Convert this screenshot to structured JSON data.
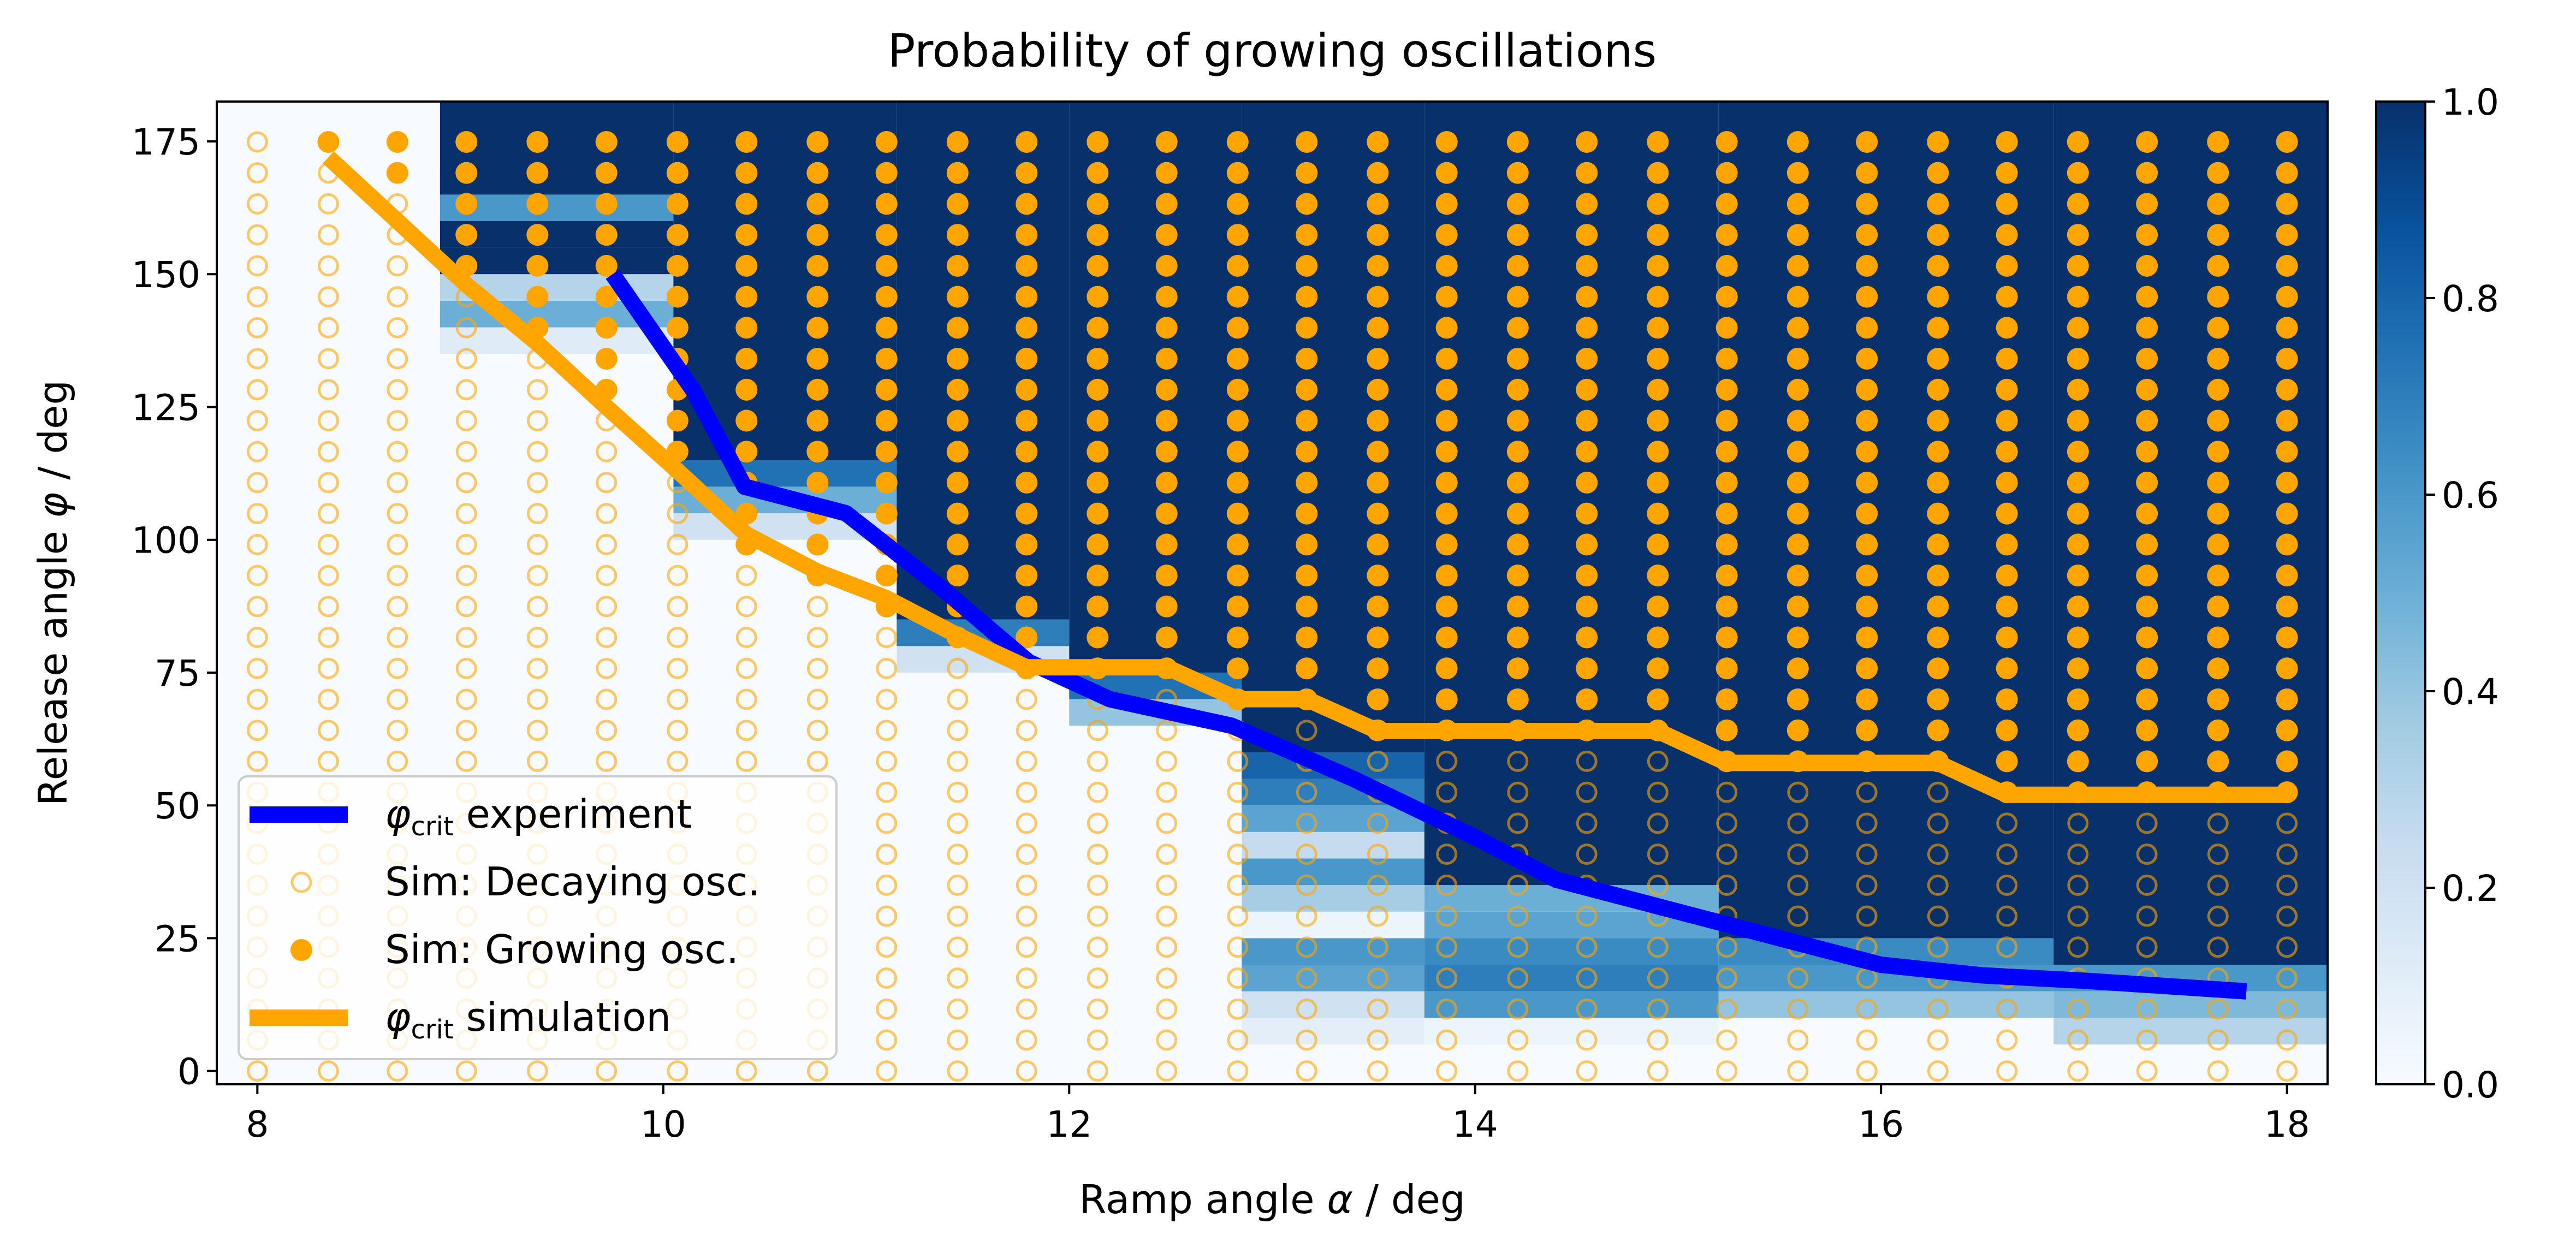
{
  "chart_data": {
    "type": "heatmap",
    "title": "Probability of growing oscillations",
    "xlabel_parts": [
      {
        "text": "Ramp angle ",
        "italic": false
      },
      {
        "text": "α",
        "italic": true
      },
      {
        "text": " / deg",
        "italic": false
      }
    ],
    "ylabel_parts": [
      {
        "text": "Release angle ",
        "italic": false
      },
      {
        "text": "φ",
        "italic": true
      },
      {
        "text": " / deg",
        "italic": false
      }
    ],
    "xlim": [
      7.8,
      18.2
    ],
    "ylim": [
      -2.5,
      182.5
    ],
    "xticks": [
      8,
      10,
      12,
      14,
      16,
      18
    ],
    "yticks": [
      0,
      25,
      50,
      75,
      100,
      125,
      150,
      175
    ],
    "colorbar": {
      "colormap": "Blues",
      "range": [
        0,
        1
      ],
      "ticks": [
        "0.0",
        "0.2",
        "0.4",
        "0.6",
        "0.8",
        "1.0"
      ]
    },
    "heatmap": {
      "cell_height_deg": 5,
      "columns": [
        {
          "x_range": [
            7.8,
            8.9
          ],
          "profile": [],
          "full_above": 182.5
        },
        {
          "x_range": [
            8.9,
            10.05
          ],
          "profile": [
            [
              135,
              0.12
            ],
            [
              140,
              0.5
            ],
            [
              145,
              0.3
            ],
            [
              150,
              1.0
            ],
            [
              155,
              1.0
            ],
            [
              160,
              0.6
            ],
            [
              165,
              1.0
            ]
          ],
          "full_above": 165
        },
        {
          "x_range": [
            10.05,
            11.15
          ],
          "profile": [
            [
              100,
              0.2
            ],
            [
              105,
              0.5
            ],
            [
              110,
              0.75
            ]
          ],
          "full_above": 115
        },
        {
          "x_range": [
            11.15,
            12.0
          ],
          "profile": [
            [
              75,
              0.2
            ],
            [
              80,
              0.7
            ]
          ],
          "full_above": 85
        },
        {
          "x_range": [
            12.0,
            12.85
          ],
          "profile": [
            [
              65,
              0.4
            ],
            [
              70,
              0.75
            ]
          ],
          "full_above": 75
        },
        {
          "x_range": [
            12.85,
            13.75
          ],
          "profile": [
            [
              5,
              0.1
            ],
            [
              10,
              0.2
            ],
            [
              15,
              0.55
            ],
            [
              20,
              0.6
            ],
            [
              25,
              0.05
            ],
            [
              30,
              0.35
            ],
            [
              35,
              0.6
            ],
            [
              40,
              0.25
            ],
            [
              45,
              0.55
            ],
            [
              50,
              0.7
            ],
            [
              55,
              0.8
            ]
          ],
          "full_above": 60
        },
        {
          "x_range": [
            13.75,
            15.2
          ],
          "profile": [
            [
              5,
              0.05
            ],
            [
              10,
              0.6
            ],
            [
              15,
              0.7
            ],
            [
              20,
              0.65
            ],
            [
              25,
              0.55
            ],
            [
              30,
              0.5
            ]
          ],
          "full_above": 35
        },
        {
          "x_range": [
            15.2,
            16.85
          ],
          "profile": [
            [
              10,
              0.4
            ],
            [
              15,
              0.6
            ],
            [
              20,
              0.65
            ]
          ],
          "full_above": 25
        },
        {
          "x_range": [
            16.85,
            18.2
          ],
          "profile": [
            [
              5,
              0.3
            ],
            [
              10,
              0.45
            ],
            [
              15,
              0.6
            ]
          ],
          "full_above": 20
        }
      ]
    },
    "sim_grid": {
      "x": [
        8.0,
        8.35,
        8.69,
        9.03,
        9.38,
        9.72,
        10.07,
        10.41,
        10.76,
        11.1,
        11.45,
        11.79,
        12.14,
        12.48,
        12.83,
        13.17,
        13.52,
        13.86,
        14.21,
        14.55,
        14.9,
        15.24,
        15.59,
        15.93,
        16.28,
        16.62,
        16.97,
        17.31,
        17.66,
        18.0
      ],
      "y_min": 0,
      "y_max": 175,
      "y_step": 5.83,
      "growing_from_y": [
        999,
        175,
        169,
        151,
        140,
        128,
        116,
        99,
        93,
        87,
        81,
        76,
        76,
        76,
        70,
        70,
        64,
        64,
        64,
        64,
        64,
        58,
        58,
        58,
        58,
        52,
        52,
        52,
        52,
        52
      ]
    },
    "series": [
      {
        "name": "experiment",
        "color": "#0000ff",
        "x": [
          9.75,
          10.15,
          10.4,
          10.9,
          11.4,
          11.8,
          12.2,
          12.8,
          13.4,
          14.0,
          14.4,
          15.0,
          15.5,
          16.0,
          16.5,
          17.0,
          17.8
        ],
        "y": [
          150,
          128,
          110,
          105,
          90,
          77,
          70,
          65,
          55,
          44,
          36,
          30,
          25,
          20,
          18,
          17,
          15
        ]
      },
      {
        "name": "simulation",
        "color": "#ffa500",
        "x": [
          8.35,
          8.69,
          9.03,
          9.38,
          9.72,
          10.07,
          10.41,
          10.76,
          11.1,
          11.45,
          11.79,
          12.48,
          12.83,
          13.17,
          13.52,
          14.9,
          15.24,
          16.28,
          16.62,
          18.0
        ],
        "y": [
          172,
          160,
          148,
          137,
          125,
          113,
          101,
          94,
          89,
          82,
          76,
          76,
          70,
          70,
          64,
          64,
          58,
          58,
          52,
          52
        ]
      }
    ],
    "legend": {
      "placement": "lower left",
      "entries": [
        {
          "kind": "line",
          "color": "#0000ff",
          "prefix": "φ",
          "sub": "crit",
          "label": " experiment"
        },
        {
          "kind": "open-marker",
          "color": "#ffa500",
          "label": "Sim: Decaying osc."
        },
        {
          "kind": "filled-marker",
          "color": "#ffa500",
          "label": "Sim: Growing osc."
        },
        {
          "kind": "line",
          "color": "#ffa500",
          "prefix": "φ",
          "sub": "crit",
          "label": " simulation"
        }
      ]
    }
  }
}
